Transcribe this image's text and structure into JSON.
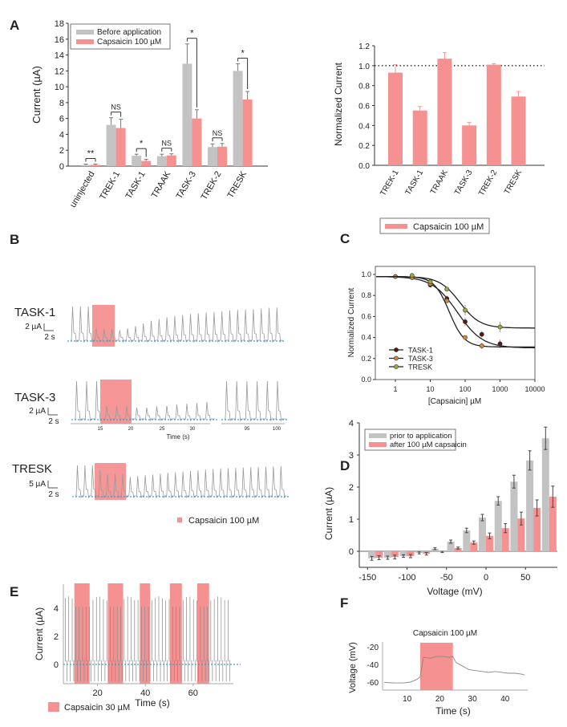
{
  "panel_labels": {
    "A": "A",
    "B": "B",
    "C": "C",
    "D": "D",
    "E": "E",
    "F": "F"
  },
  "colors": {
    "before": "#c3c3c3",
    "capsaicin": "#f59191",
    "baseline": "#3a9fd0",
    "trace": "#9a9a9a"
  },
  "chart_data": [
    {
      "panel": "A",
      "type": "bar",
      "categories": [
        "uninjected",
        "TREK-1",
        "TASK-1",
        "TRAAK",
        "TASK-3",
        "TREK-2",
        "TRESK"
      ],
      "series": [
        {
          "name": "Before application",
          "values": [
            0.15,
            5.2,
            1.3,
            1.25,
            12.9,
            2.4,
            12.0
          ],
          "errors": [
            0.1,
            0.9,
            0.2,
            0.25,
            2.5,
            0.4,
            0.9
          ]
        },
        {
          "name": "Capsaicin 100 µM",
          "values": [
            0.15,
            4.8,
            0.65,
            1.35,
            6.0,
            2.45,
            8.4
          ],
          "errors": [
            0.1,
            1.1,
            0.2,
            0.2,
            1.1,
            0.4,
            1.0
          ]
        }
      ],
      "significance": [
        "**",
        "NS",
        "*",
        "NS",
        "*",
        "NS",
        "*"
      ],
      "ylabel": "Current (µA)",
      "ylim": [
        0,
        18
      ],
      "y_ticks": [
        "0",
        "2",
        "4",
        "6",
        "8",
        "10",
        "12",
        "14",
        "16",
        "18"
      ],
      "legend": "top-left"
    },
    {
      "panel": "A",
      "type": "bar",
      "categories": [
        "TREK-1",
        "TASK-1",
        "TRAAK",
        "TASK-3",
        "TREK-2",
        "TRESK"
      ],
      "series": [
        {
          "name": "Capsaicin 100 µM",
          "values": [
            0.93,
            0.55,
            1.07,
            0.4,
            1.01,
            0.69
          ],
          "errors": [
            0.08,
            0.04,
            0.06,
            0.03,
            0.01,
            0.05
          ]
        }
      ],
      "reference_line": 1.0,
      "ylabel": "Normalized Current",
      "ylim": [
        0,
        1.2
      ],
      "y_ticks": [
        "0.0",
        "0.2",
        "0.4",
        "0.6",
        "0.8",
        "1.0",
        "1.2"
      ],
      "legend": "bottom"
    },
    {
      "panel": "B",
      "type": "line",
      "traces": [
        {
          "label": "TASK-1",
          "scale_current": "2 µA",
          "scale_time": "2 s",
          "segments": [
            [
              1,
              1,
              1,
              0.35,
              0.35,
              0.35,
              0.3,
              0.35,
              0.42,
              0.5,
              0.58,
              0.63,
              0.68,
              0.72,
              0.75,
              0.78,
              0.8,
              0.82,
              0.84,
              0.86,
              0.88,
              0.9,
              0.91,
              0.92,
              0.94,
              0.96,
              0.97
            ]
          ]
        },
        {
          "label": "TASK-3",
          "scale_current": "2 µA",
          "scale_time": "2 s",
          "segments": [
            [
              1,
              1,
              1,
              0.35,
              0.35,
              0.35,
              0.3,
              0.3,
              0.33,
              0.35,
              0.38,
              0.4,
              0.42,
              0.45
            ],
            [
              1,
              1,
              1,
              1,
              1,
              1
            ]
          ]
        },
        {
          "label": "TRESK",
          "scale_current": "5 µA",
          "scale_time": "2 s",
          "segments": [
            [
              1,
              1,
              1,
              0.85,
              0.72,
              0.72,
              0.72,
              0.62,
              0.65,
              0.68,
              0.7,
              0.73,
              0.76,
              0.78,
              0.8,
              0.82,
              0.84,
              0.86,
              0.88,
              0.9,
              0.91,
              0.92,
              0.93,
              0.94,
              0.95,
              0.96,
              0.97,
              0.98
            ]
          ]
        }
      ],
      "time_ticks": [
        "15",
        "20",
        "25",
        "30",
        "95",
        "100"
      ],
      "xlabel": "Time (s)",
      "legend_label": "Capsaicin 100 µM"
    },
    {
      "panel": "C",
      "type": "scatter",
      "xscale": "log",
      "x": [
        1,
        3,
        10,
        30,
        100,
        300,
        1000
      ],
      "series": [
        {
          "name": "TASK-1",
          "color": "#5a1616",
          "values": [
            0.98,
            0.98,
            0.9,
            0.77,
            0.55,
            0.43,
            0.34
          ],
          "errors": [
            0.01,
            0.01,
            0.02,
            0.03,
            0.04,
            0.03,
            0.04
          ]
        },
        {
          "name": "TASK-3",
          "color": "#d2873c",
          "values": [
            0.98,
            0.97,
            0.91,
            0.75,
            0.4,
            0.32,
            null
          ],
          "errors": [
            0.01,
            0.01,
            0.02,
            0.02,
            0.02,
            0.03,
            null
          ]
        },
        {
          "name": "TRESK",
          "color": "#a3a83c",
          "values": [
            null,
            0.99,
            0.93,
            0.86,
            0.66,
            null,
            0.5
          ],
          "errors": [
            null,
            0.01,
            0.01,
            0.01,
            0.05,
            null,
            0.05
          ]
        }
      ],
      "xlabel": "[Capsaicin] µM",
      "ylabel": "Normalized Current",
      "x_ticks": [
        "1",
        "10",
        "100",
        "1000",
        "10000"
      ],
      "y_ticks": [
        "0.0",
        "0.2",
        "0.4",
        "0.6",
        "0.8",
        "1.0"
      ],
      "ylim": [
        0,
        1.05
      ],
      "legend": "bottom-left"
    },
    {
      "panel": "D",
      "type": "bar",
      "x": [
        -140,
        -120,
        -100,
        -80,
        -60,
        -40,
        -20,
        0,
        20,
        40,
        60,
        80
      ],
      "series": [
        {
          "name": "prior to application",
          "values": [
            -0.22,
            -0.2,
            -0.15,
            -0.05,
            0.08,
            0.3,
            0.65,
            1.05,
            1.57,
            2.17,
            2.83,
            3.52
          ],
          "errors": [
            0.06,
            0.05,
            0.04,
            0.03,
            0.03,
            0.05,
            0.07,
            0.1,
            0.13,
            0.2,
            0.3,
            0.35
          ]
        },
        {
          "name": "after 100 µM capsaicin",
          "values": [
            -0.2,
            -0.18,
            -0.15,
            -0.08,
            -0.02,
            0.1,
            0.27,
            0.48,
            0.72,
            1.02,
            1.35,
            1.7
          ],
          "errors": [
            0.06,
            0.06,
            0.05,
            0.04,
            0.02,
            0.03,
            0.05,
            0.09,
            0.14,
            0.2,
            0.25,
            0.33
          ]
        }
      ],
      "xlabel": "Voltage (mV)",
      "ylabel": "Current (µA)",
      "x_ticks": [
        "-150",
        "-100",
        "-50",
        "0",
        "50"
      ],
      "y_ticks": [
        "0",
        "1",
        "2",
        "3",
        "4"
      ],
      "legend": "top-left"
    },
    {
      "panel": "E",
      "type": "line",
      "xlabel": "Time (s)",
      "ylabel": "Current (µA)",
      "x_ticks": [
        "20",
        "40",
        "60"
      ],
      "y_ticks": [
        "0",
        "2",
        "4"
      ],
      "application_windows_s": [
        [
          10.3,
          16.7
        ],
        [
          24.3,
          30.7
        ],
        [
          37.7,
          42
        ],
        [
          50.3,
          55.3
        ],
        [
          61.7,
          66.7
        ]
      ],
      "peak_outside": 4.7,
      "peak_during": 4.1,
      "trough": -1.2,
      "legend_label": "Capsaicin 30 µM"
    },
    {
      "panel": "F",
      "type": "line",
      "title": "Capsaicin 100 µM",
      "xlabel": "Time (s)",
      "ylabel": "Voltage  (mV)",
      "x_ticks": [
        "10",
        "20",
        "30",
        "40"
      ],
      "y_ticks": [
        "-20",
        "-40",
        "-60"
      ],
      "application_window_s": [
        14,
        24
      ],
      "x": [
        3,
        6,
        9,
        11,
        13,
        14,
        15,
        17,
        19,
        21,
        23,
        24,
        25,
        27,
        29,
        31,
        33,
        35,
        37,
        39,
        41,
        43,
        45,
        46
      ],
      "y": [
        -60.5,
        -61,
        -61,
        -60,
        -57,
        -54,
        -32,
        -33,
        -31,
        -31,
        -32,
        -31,
        -38,
        -42,
        -46,
        -47,
        -48,
        -49,
        -48,
        -49,
        -50,
        -50,
        -51,
        -52
      ]
    }
  ]
}
